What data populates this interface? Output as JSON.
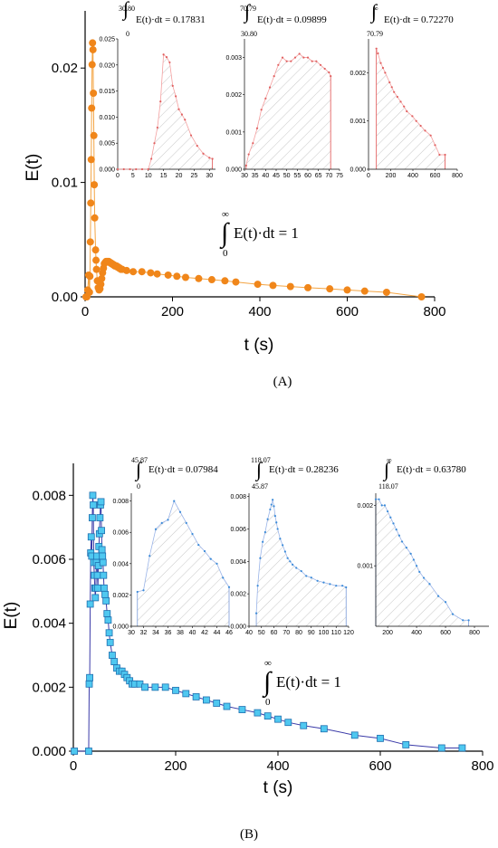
{
  "panels": [
    {
      "panel_label": "(A)",
      "integral_label": {
        "upper": "∞",
        "lower": "0",
        "expression": "E(t)·dt = 1"
      },
      "insets": [
        {
          "upper": "30.80",
          "lower": "0",
          "label": "E(t)·dt = 0.17831"
        },
        {
          "upper": "70.79",
          "lower": "30.80",
          "label": "E(t)·dt = 0.09899"
        },
        {
          "upper": "∞",
          "lower": "70.79",
          "label": "E(t)·dt = 0.72270"
        }
      ]
    },
    {
      "panel_label": "(B)",
      "integral_label": {
        "upper": "∞",
        "lower": "0",
        "expression": "E(t)·dt = 1"
      },
      "insets": [
        {
          "upper": "45.87",
          "lower": "0",
          "label": "E(t)·dt = 0.07984"
        },
        {
          "upper": "118.07",
          "lower": "45.87",
          "label": "E(t)·dt = 0.28236"
        },
        {
          "upper": "∞",
          "lower": "118.07",
          "label": "E(t)·dt = 0.63780"
        }
      ]
    }
  ],
  "colors": {
    "orange": "#f0861a",
    "orange_line": "#f3a443",
    "cyan_fill": "#4fc8f0",
    "cyan_edge": "#1e6fb0",
    "navy_line": "#3a3aa8",
    "hatch": "#c8c8c8",
    "red_edge": "#e05050",
    "inset_line_A": "#f4a0a0",
    "inset_line_B": "#9ab4e8",
    "inset_point_B": "#3a8ad8"
  },
  "chart_data": [
    {
      "type": "scatter",
      "xlabel": "t (s)",
      "ylabel": "E(t)",
      "xlim": [
        0,
        800
      ],
      "ylim": [
        0,
        0.025
      ],
      "x_ticks": [
        "0",
        "200",
        "400",
        "600",
        "800"
      ],
      "y_ticks": [
        "0.00",
        "0.01",
        "0.02"
      ],
      "series": [
        {
          "x": [
            2,
            4,
            6,
            8,
            10,
            11,
            12,
            13,
            14,
            15,
            16,
            17,
            18,
            19,
            20,
            21,
            22,
            24,
            25,
            26,
            28,
            30,
            32,
            34,
            36,
            38,
            40,
            42,
            44,
            46,
            48,
            50,
            52,
            54,
            56,
            58,
            60,
            62,
            64,
            66,
            68,
            70,
            72,
            74,
            76,
            78,
            80,
            82,
            85,
            95,
            110,
            130,
            150,
            165,
            190,
            210,
            230,
            260,
            290,
            320,
            345,
            395,
            430,
            470,
            510,
            560,
            600,
            640,
            690,
            770
          ],
          "y": [
            0.0,
            0.0,
            0.0006,
            0.0019,
            0.0004,
            0.0018,
            0.0048,
            0.0082,
            0.012,
            0.0165,
            0.0203,
            0.0222,
            0.0216,
            0.0178,
            0.0141,
            0.0098,
            0.0069,
            0.0041,
            0.0032,
            0.0024,
            0.0014,
            0.0008,
            0.0006,
            0.0007,
            0.0011,
            0.0016,
            0.0021,
            0.0025,
            0.0029,
            0.003,
            0.0031,
            0.0031,
            0.0031,
            0.0031,
            0.003,
            0.003,
            0.0029,
            0.0029,
            0.0028,
            0.0028,
            0.0027,
            0.0027,
            0.0027,
            0.0026,
            0.0026,
            0.0025,
            0.0025,
            0.0024,
            0.0024,
            0.0023,
            0.0022,
            0.0022,
            0.0021,
            0.002,
            0.0019,
            0.0018,
            0.0017,
            0.0016,
            0.0015,
            0.0014,
            0.0013,
            0.0011,
            0.001,
            0.0009,
            0.0008,
            0.0007,
            0.0006,
            0.0005,
            0.0004,
            0.0
          ]
        }
      ],
      "insets": [
        {
          "xlim": [
            0,
            32
          ],
          "ylim": [
            0,
            0.025
          ],
          "x_ticks": [
            "0",
            "5",
            "10",
            "15",
            "20",
            "25",
            "30"
          ],
          "y_ticks": [
            "0.000",
            "0.005",
            "0.010",
            "0.015",
            "0.020",
            "0.025"
          ],
          "shade_from": 10,
          "x": [
            0,
            2,
            4,
            6,
            8,
            10,
            11,
            12,
            13,
            14,
            15,
            16,
            17,
            18,
            19,
            20,
            21,
            22,
            24,
            26,
            28,
            30,
            31
          ],
          "y": [
            0,
            0,
            0,
            0,
            0,
            0,
            0.002,
            0.005,
            0.008,
            0.013,
            0.022,
            0.0215,
            0.0205,
            0.016,
            0.014,
            0.0115,
            0.0105,
            0.0095,
            0.0065,
            0.0045,
            0.003,
            0.0022,
            0.002
          ]
        },
        {
          "xlim": [
            30,
            75
          ],
          "ylim": [
            0,
            0.0035
          ],
          "x_ticks": [
            "30",
            "35",
            "40",
            "45",
            "50",
            "55",
            "60",
            "65",
            "70",
            "75"
          ],
          "y_ticks": [
            "0.000",
            "0.001",
            "0.002",
            "0.003"
          ],
          "shade_from": 30.8,
          "x": [
            30.8,
            32,
            34,
            36,
            38,
            40,
            42,
            44,
            46,
            48,
            50,
            52,
            54,
            56,
            58,
            60,
            62,
            64,
            66,
            68,
            70,
            70.79
          ],
          "y": [
            0.0001,
            0.0004,
            0.0007,
            0.0011,
            0.0016,
            0.0019,
            0.0022,
            0.0025,
            0.0028,
            0.003,
            0.0029,
            0.0029,
            0.003,
            0.0031,
            0.003,
            0.003,
            0.0029,
            0.0029,
            0.0028,
            0.0027,
            0.0026,
            0.0025
          ]
        },
        {
          "xlim": [
            0,
            800
          ],
          "ylim": [
            0,
            0.0027
          ],
          "x_ticks": [
            "0",
            "200",
            "400",
            "600",
            "800"
          ],
          "y_ticks": [
            "0.000",
            "0.001",
            "0.002"
          ],
          "shade_from": 70.79,
          "x": [
            70.79,
            85,
            110,
            130,
            150,
            190,
            210,
            230,
            260,
            290,
            320,
            345,
            395,
            430,
            470,
            510,
            560,
            600,
            640,
            690
          ],
          "y": [
            0.0025,
            0.0024,
            0.0022,
            0.0021,
            0.002,
            0.0018,
            0.0017,
            0.0016,
            0.0015,
            0.0014,
            0.0013,
            0.0012,
            0.0011,
            0.001,
            0.0009,
            0.0008,
            0.0007,
            0.0005,
            0.0003,
            0.0003
          ]
        }
      ]
    },
    {
      "type": "line",
      "xlabel": "t (s)",
      "ylabel": "E(t)",
      "xlim": [
        0,
        800
      ],
      "ylim": [
        0,
        0.009
      ],
      "x_ticks": [
        "0",
        "200",
        "400",
        "600",
        "800"
      ],
      "y_ticks": [
        "0.000",
        "0.002",
        "0.004",
        "0.006",
        "0.008"
      ],
      "series": [
        {
          "x": [
            2,
            30,
            31,
            32,
            33,
            34,
            35,
            36,
            37,
            38,
            39,
            40,
            41,
            42,
            43,
            44,
            45,
            46,
            47,
            48,
            49,
            50,
            51,
            52,
            53,
            54,
            55,
            56,
            57,
            58,
            59,
            60,
            62,
            64,
            66,
            68,
            70,
            72,
            76,
            80,
            85,
            90,
            95,
            100,
            105,
            110,
            115,
            120,
            130,
            140,
            160,
            180,
            200,
            220,
            240,
            260,
            280,
            300,
            330,
            360,
            380,
            400,
            420,
            450,
            490,
            550,
            600,
            650,
            720,
            760
          ],
          "y": [
            0.0,
            0.0,
            0.0021,
            0.0023,
            0.0046,
            0.0062,
            0.0067,
            0.0061,
            0.0073,
            0.008,
            0.0077,
            0.0059,
            0.0055,
            0.0051,
            0.0048,
            0.0051,
            0.0059,
            0.0061,
            0.0055,
            0.0051,
            0.0058,
            0.0064,
            0.0068,
            0.0073,
            0.0077,
            0.0078,
            0.0069,
            0.0063,
            0.0061,
            0.0059,
            0.0055,
            0.0051,
            0.0049,
            0.0047,
            0.0043,
            0.0041,
            0.0037,
            0.0034,
            0.003,
            0.0028,
            0.0026,
            0.0025,
            0.0025,
            0.0024,
            0.0023,
            0.0022,
            0.0021,
            0.0021,
            0.0021,
            0.002,
            0.002,
            0.002,
            0.0019,
            0.0018,
            0.0017,
            0.0016,
            0.0015,
            0.0014,
            0.0013,
            0.0012,
            0.0011,
            0.001,
            0.0009,
            0.0008,
            0.0007,
            0.0005,
            0.0004,
            0.0002,
            0.0001,
            0.0001
          ]
        }
      ],
      "insets": [
        {
          "xlim": [
            30,
            46
          ],
          "ylim": [
            0,
            0.0085
          ],
          "x_ticks": [
            "30",
            "32",
            "34",
            "36",
            "38",
            "40",
            "42",
            "44",
            "46"
          ],
          "y_ticks": [
            "0.000",
            "0.002",
            "0.004",
            "0.006",
            "0.008"
          ],
          "shade_from": 31,
          "x": [
            31,
            32,
            33,
            34,
            35,
            36,
            37,
            38,
            39,
            40,
            41,
            42,
            43,
            44,
            45,
            46
          ],
          "y": [
            0.0022,
            0.0023,
            0.0045,
            0.0062,
            0.0066,
            0.0068,
            0.008,
            0.0073,
            0.0066,
            0.0059,
            0.0052,
            0.0048,
            0.0043,
            0.004,
            0.0031,
            0.0025
          ]
        },
        {
          "xlim": [
            40,
            120
          ],
          "ylim": [
            0,
            0.0082
          ],
          "x_ticks": [
            "40",
            "50",
            "60",
            "70",
            "80",
            "90",
            "100",
            "110",
            "120"
          ],
          "y_ticks": [
            "0.000",
            "0.002",
            "0.004",
            "0.006",
            "0.008"
          ],
          "shade_from": 45.87,
          "x": [
            45.87,
            47,
            49,
            51,
            53,
            55,
            57,
            58,
            59,
            60,
            61,
            62,
            63,
            65,
            67,
            69,
            71,
            73,
            75,
            78,
            82,
            86,
            90,
            95,
            100,
            105,
            110,
            115,
            118
          ],
          "y": [
            0.0008,
            0.0025,
            0.0042,
            0.0052,
            0.0058,
            0.0066,
            0.0072,
            0.0075,
            0.0078,
            0.0074,
            0.0068,
            0.0064,
            0.006,
            0.0054,
            0.005,
            0.0046,
            0.0042,
            0.004,
            0.0038,
            0.0036,
            0.0034,
            0.0031,
            0.003,
            0.0028,
            0.0027,
            0.0026,
            0.0025,
            0.0025,
            0.0024
          ]
        },
        {
          "xlim": [
            118,
            900
          ],
          "ylim": [
            0,
            0.0022
          ],
          "x_ticks": [
            "200",
            "400",
            "600",
            "800"
          ],
          "y_ticks": [
            "0.001",
            "0.002"
          ],
          "shade_from": 118.07,
          "x": [
            118.07,
            140,
            160,
            180,
            200,
            220,
            240,
            260,
            280,
            300,
            330,
            360,
            380,
            400,
            420,
            450,
            490,
            550,
            600,
            650,
            720,
            760
          ],
          "y": [
            0.0021,
            0.0021,
            0.002,
            0.002,
            0.0019,
            0.0018,
            0.0017,
            0.0016,
            0.0015,
            0.0014,
            0.0013,
            0.0012,
            0.0011,
            0.001,
            0.0009,
            0.0008,
            0.0007,
            0.0005,
            0.0004,
            0.0002,
            0.0001,
            0.0001
          ]
        }
      ]
    }
  ]
}
